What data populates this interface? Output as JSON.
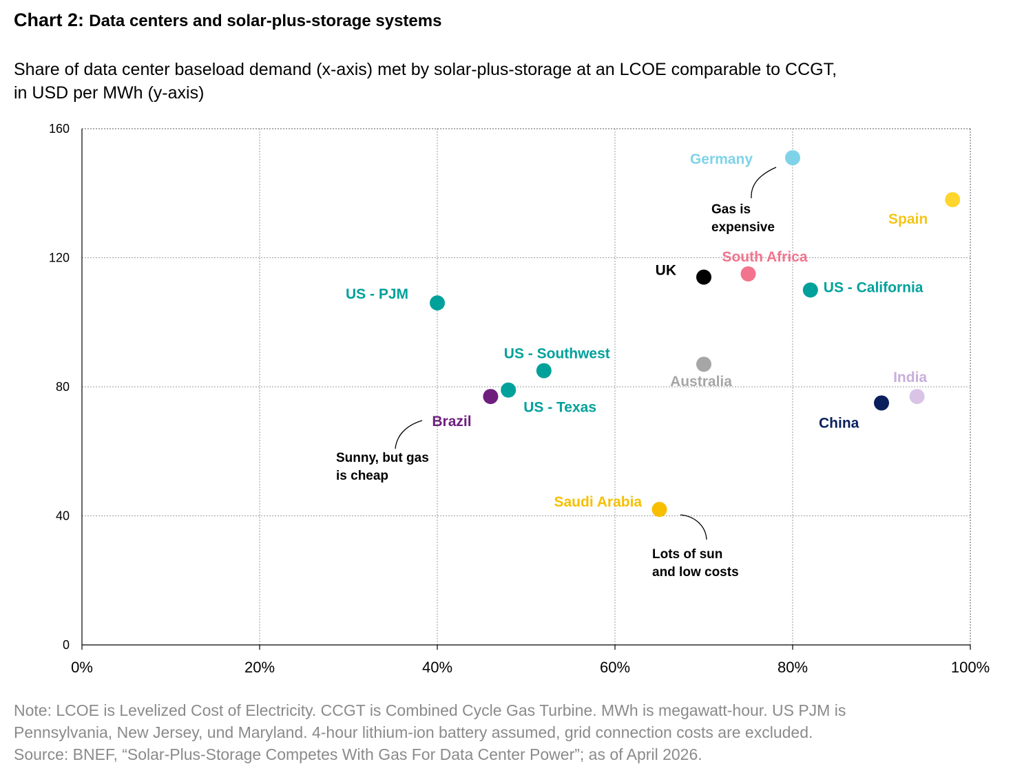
{
  "header": {
    "title_prefix": "Chart 2:",
    "title_text": "Data centers and solar-plus-storage systems",
    "subtitle_line1": "Share of data center baseload demand (x-axis) met by solar-plus-storage at an LCOE comparable to CCGT,",
    "subtitle_line2": "in USD per MWh (y-axis)"
  },
  "chart_data": {
    "type": "scatter",
    "x_unit": "percent",
    "y_unit": "USD per MWh",
    "xlim": [
      0,
      100
    ],
    "ylim": [
      0,
      160
    ],
    "x_ticks": [
      0,
      20,
      40,
      60,
      80,
      100
    ],
    "x_tick_labels": [
      "0%",
      "20%",
      "40%",
      "60%",
      "80%",
      "100%"
    ],
    "y_ticks": [
      0,
      40,
      80,
      120,
      160
    ],
    "y_tick_labels": [
      "0",
      "40",
      "80",
      "120",
      "160"
    ],
    "grid": true,
    "legend": "none",
    "points": [
      {
        "label": "Germany",
        "x": 80,
        "y": 151,
        "color": "#7fd3e8"
      },
      {
        "label": "Spain",
        "x": 98,
        "y": 138,
        "color": "#ffd52e"
      },
      {
        "label": "UK",
        "x": 70,
        "y": 114,
        "color": "#000000"
      },
      {
        "label": "South Africa",
        "x": 75,
        "y": 115,
        "color": "#f2738d"
      },
      {
        "label": "US - California",
        "x": 82,
        "y": 110,
        "color": "#00a19b"
      },
      {
        "label": "US - PJM",
        "x": 40,
        "y": 106,
        "color": "#00a19b"
      },
      {
        "label": "US - Southwest",
        "x": 52,
        "y": 85,
        "color": "#00a19b"
      },
      {
        "label": "Australia",
        "x": 70,
        "y": 87,
        "color": "#a6a6a6"
      },
      {
        "label": "US - Texas",
        "x": 48,
        "y": 79,
        "color": "#00a19b"
      },
      {
        "label": "Brazil",
        "x": 46,
        "y": 77,
        "color": "#6e1f7e"
      },
      {
        "label": "India",
        "x": 94,
        "y": 77,
        "color": "#d9c4e6"
      },
      {
        "label": "China",
        "x": 90,
        "y": 75,
        "color": "#0a1f5c"
      },
      {
        "label": "Saudi Arabia",
        "x": 65,
        "y": 42,
        "color": "#f7bf00"
      }
    ],
    "annotations": [
      {
        "lines": [
          "Gas is",
          "expensive"
        ],
        "point": "Germany"
      },
      {
        "lines": [
          "Sunny, but  gas",
          "is cheap"
        ],
        "point": "Brazil"
      },
      {
        "lines": [
          "Lots of sun",
          "and low costs"
        ],
        "point": "Saudi Arabia"
      }
    ]
  },
  "footer": {
    "note_line1": "Note: LCOE is Levelized Cost of Electricity. CCGT is Combined Cycle Gas Turbine. MWh is megawatt-hour. US PJM is",
    "note_line2": "Pennsylvania, New Jersey, und Maryland. 4-hour lithium-ion battery assumed, grid connection costs are excluded.",
    "note_line3": "Source: BNEF, “Solar-Plus-Storage Competes With Gas For Data Center Power”; as of April 2026."
  }
}
